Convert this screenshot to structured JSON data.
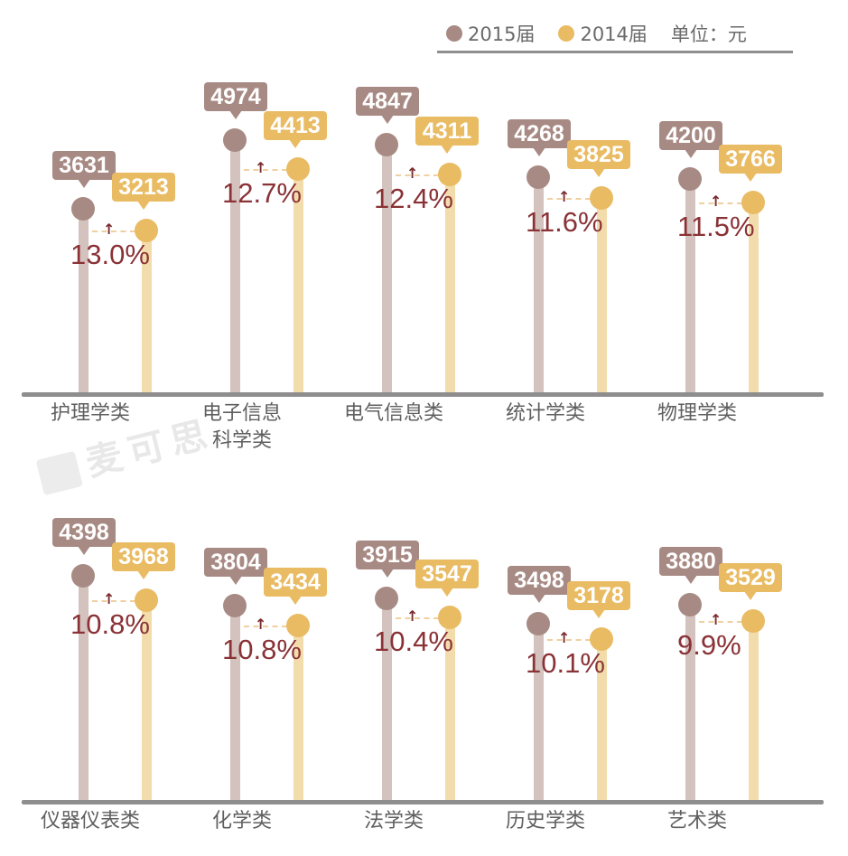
{
  "legend": {
    "series_2015": "2015届",
    "series_2014": "2014届",
    "unit": "单位：元",
    "color_2015": "#a88a84",
    "color_2014": "#e9bb63"
  },
  "watermark": "麦可思",
  "chart_data": {
    "type": "lollipop",
    "title": "",
    "unit": "元",
    "legend_position": "top-right",
    "series": [
      {
        "name": "2015届",
        "color": "#a88a84",
        "values": [
          3631,
          4974,
          4847,
          4268,
          4200,
          4398,
          3804,
          3915,
          3498,
          3880
        ]
      },
      {
        "name": "2014届",
        "color": "#e9bb63",
        "values": [
          3213,
          4413,
          4311,
          3825,
          3766,
          3968,
          3434,
          3547,
          3178,
          3529
        ]
      }
    ],
    "categories": [
      "护理学类",
      "电子信息科学类",
      "电气信息类",
      "统计学类",
      "物理学类",
      "仪器仪表类",
      "化学类",
      "法学类",
      "历史学类",
      "艺术类"
    ],
    "growth": [
      "13.0%",
      "12.7%",
      "12.4%",
      "11.6%",
      "11.5%",
      "10.8%",
      "10.8%",
      "10.4%",
      "10.1%",
      "9.9%"
    ]
  },
  "panels": [
    {
      "items": [
        {
          "cat_l1": "护理学类",
          "cat_l2": "",
          "v2015": "3631",
          "v2014": "3213",
          "pct": "13.0%"
        },
        {
          "cat_l1": "电子信息",
          "cat_l2": "科学类",
          "v2015": "4974",
          "v2014": "4413",
          "pct": "12.7%"
        },
        {
          "cat_l1": "电气信息类",
          "cat_l2": "",
          "v2015": "4847",
          "v2014": "4311",
          "pct": "12.4%"
        },
        {
          "cat_l1": "统计学类",
          "cat_l2": "",
          "v2015": "4268",
          "v2014": "3825",
          "pct": "11.6%"
        },
        {
          "cat_l1": "物理学类",
          "cat_l2": "",
          "v2015": "4200",
          "v2014": "3766",
          "pct": "11.5%"
        }
      ]
    },
    {
      "items": [
        {
          "cat_l1": "仪器仪表类",
          "cat_l2": "",
          "v2015": "4398",
          "v2014": "3968",
          "pct": "10.8%"
        },
        {
          "cat_l1": "化学类",
          "cat_l2": "",
          "v2015": "3804",
          "v2014": "3434",
          "pct": "10.8%"
        },
        {
          "cat_l1": "法学类",
          "cat_l2": "",
          "v2015": "3915",
          "v2014": "3547",
          "pct": "10.4%"
        },
        {
          "cat_l1": "历史学类",
          "cat_l2": "",
          "v2015": "3498",
          "v2014": "3178",
          "pct": "10.1%"
        },
        {
          "cat_l1": "艺术类",
          "cat_l2": "",
          "v2015": "3880",
          "v2014": "3529",
          "pct": "9.9%"
        }
      ]
    }
  ]
}
